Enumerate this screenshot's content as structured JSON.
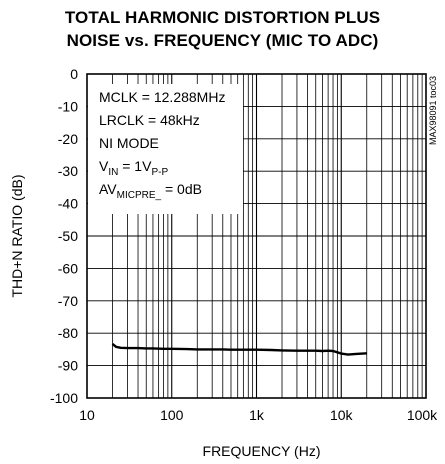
{
  "chart_data": {
    "type": "line",
    "title_line1": "TOTAL HARMONIC DISTORTION PLUS",
    "title_line2": "NOISE vs. FREQUENCY (MIC TO ADC)",
    "xlabel": "FREQUENCY (Hz)",
    "ylabel": "THD+N RATIO (dB)",
    "x_scale": "log",
    "xlim": [
      10,
      100000
    ],
    "ylim": [
      -100,
      0
    ],
    "x_ticks": [
      10,
      100,
      1000,
      10000,
      100000
    ],
    "x_tick_labels": [
      "10",
      "100",
      "1k",
      "10k",
      "100k"
    ],
    "y_ticks": [
      0,
      -10,
      -20,
      -30,
      -40,
      -50,
      -60,
      -70,
      -80,
      -90,
      -100
    ],
    "y_tick_labels": [
      "0",
      "-10",
      "-20",
      "-30",
      "-40",
      "-50",
      "-60",
      "-70",
      "-80",
      "-90",
      "-100"
    ],
    "grid": true,
    "annotations": {
      "mclk": "MCLK = 12.288MHz",
      "lrclk": "LRCLK = 48kHz",
      "mode": "NI MODE",
      "vin_main": "V",
      "vin_sub": "IN",
      "vin_val": " = 1V",
      "vin_unit": "P-P",
      "av_main": "AV",
      "av_sub": "MICPRE_",
      "av_val": " = 0dB"
    },
    "figure_code": "MAX98091 toc03",
    "series": [
      {
        "x": [
          20,
          22,
          25,
          30,
          40,
          50,
          60,
          80,
          100,
          150,
          200,
          300,
          400,
          500,
          700,
          1000,
          1500,
          2000,
          3000,
          4000,
          5000,
          6000,
          7000,
          8000,
          9000,
          10000,
          12000,
          15000,
          20000
        ],
        "y": [
          -83.3,
          -84.2,
          -84.5,
          -84.6,
          -84.6,
          -84.7,
          -84.7,
          -84.8,
          -84.8,
          -84.9,
          -85.0,
          -85.0,
          -85.0,
          -85.1,
          -85.1,
          -85.1,
          -85.2,
          -85.3,
          -85.4,
          -85.4,
          -85.4,
          -85.5,
          -85.4,
          -85.5,
          -85.9,
          -86.3,
          -86.6,
          -86.4,
          -86.2
        ]
      }
    ]
  }
}
